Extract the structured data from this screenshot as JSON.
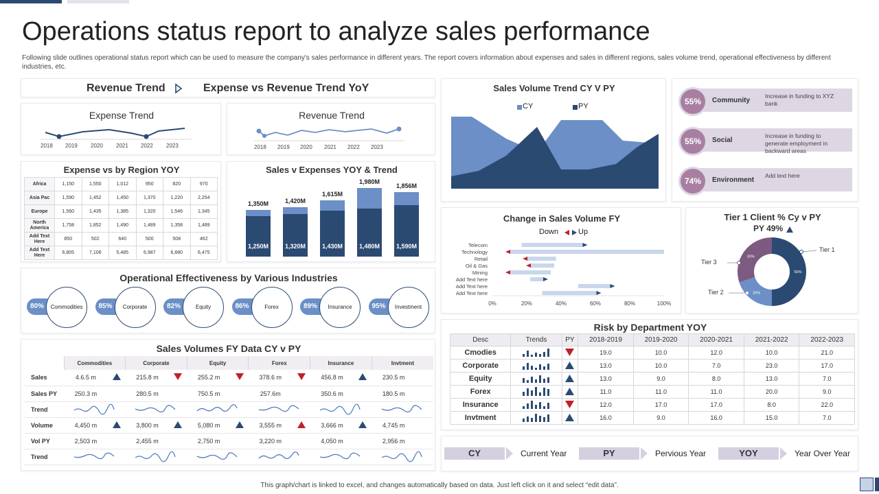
{
  "header": {
    "title": "Operations status report to analyze sales performance",
    "subtitle": "Following slide outlines operational status report which can be used to measure the company's sales performance in different years. The report covers information about expenses and sales in different regions, sales volume trend, operational effectiveness by different industries, etc."
  },
  "trend_tabs": {
    "left": "Revenue Trend",
    "right": "Expense vs Revenue Trend YoY"
  },
  "expense_trend": {
    "title": "Expense Trend",
    "years": [
      "2018",
      "2019",
      "2020",
      "2021",
      "2022",
      "2023"
    ]
  },
  "revenue_trend": {
    "title": "Revenue Trend",
    "years": [
      "2018",
      "2019",
      "2020",
      "2021",
      "2022",
      "2023"
    ]
  },
  "region": {
    "title": "Expense vs by Region YOY",
    "rows": [
      {
        "label": "Africa",
        "values": [
          "1,150",
          "1,550",
          "1,012",
          "950",
          "820",
          "970"
        ]
      },
      {
        "label": "Asia Pac",
        "values": [
          "1,590",
          "1,452",
          "1,450",
          "1,370",
          "1,220",
          "2,254"
        ]
      },
      {
        "label": "Europe",
        "values": [
          "1,560",
          "1,435",
          "1,385",
          "1,320",
          "1,546",
          "1,345"
        ]
      },
      {
        "label": "North America",
        "values": [
          "1,758",
          "1,852",
          "1,490",
          "1,489",
          "1,358",
          "1,489"
        ]
      },
      {
        "label": "Add Text Here",
        "values": [
          "850",
          "502",
          "640",
          "500",
          "508",
          "462"
        ]
      },
      {
        "label": "Add Text Here",
        "values": [
          "6,805",
          "7,106",
          "5,485",
          "6,987",
          "6,680",
          "6,475"
        ]
      }
    ]
  },
  "sales_expenses": {
    "title": "Sales v Expenses  YOY & Trend",
    "bars": [
      {
        "top": "1,350M",
        "bottom": "1,250M"
      },
      {
        "top": "1,420M",
        "bottom": "1,320M"
      },
      {
        "top": "1,615M",
        "bottom": "1,430M"
      },
      {
        "top": "1,980M",
        "bottom": "1,480M"
      },
      {
        "top": "1,856M",
        "bottom": "1,590M"
      }
    ]
  },
  "effectiveness": {
    "title": "Operational Effectiveness  by Various Industries",
    "items": [
      {
        "pct": "80%",
        "label": "Commodities"
      },
      {
        "pct": "85%",
        "label": "Corporate"
      },
      {
        "pct": "82%",
        "label": "Equity"
      },
      {
        "pct": "86%",
        "label": "Forex"
      },
      {
        "pct": "89%",
        "label": "Insurance"
      },
      {
        "pct": "95%",
        "label": "Investment"
      }
    ]
  },
  "sales_volumes": {
    "title": "Sales Volumes FY Data CY v PY",
    "headers": [
      "Commodities",
      "Corporate",
      "Equity",
      "Forex",
      "Insurance",
      "Invtment"
    ],
    "rows": [
      {
        "label": "Sales",
        "values": [
          "4.6.5 m",
          "215.8 m",
          "255.2 m",
          "378.6 m",
          "456.8 m",
          "230.5 m"
        ],
        "arrows": [
          "up",
          "down",
          "down",
          "down",
          "up",
          ""
        ]
      },
      {
        "label": "Sales PY",
        "values": [
          "250.3 m",
          "280.5 m",
          "750.5 m",
          "257.6m",
          "350.6 m",
          "180.5 m"
        ],
        "arrows": [
          "",
          "",
          "",
          "",
          "",
          ""
        ]
      },
      {
        "label": "Trend",
        "values": [
          "",
          "",
          "",
          "",
          "",
          ""
        ],
        "arrows": [
          "",
          "",
          "",
          "",
          "",
          ""
        ]
      },
      {
        "label": "Volume",
        "values": [
          "4,450 m",
          "3,800 m",
          "5,080 m",
          "3,555 m",
          "3,666 m",
          "4,745 m"
        ],
        "arrows": [
          "up",
          "up",
          "up",
          "red-up",
          "up",
          ""
        ]
      },
      {
        "label": "Vol PY",
        "values": [
          "2,503 m",
          "2,455 m",
          "2,750 m",
          "3,220 m",
          "4,050 m",
          "2,956 m"
        ],
        "arrows": [
          "",
          "",
          "",
          "",
          "",
          ""
        ]
      },
      {
        "label": "Trend",
        "values": [
          "",
          "",
          "",
          "",
          "",
          ""
        ],
        "arrows": [
          "",
          "",
          "",
          "",
          "",
          ""
        ]
      }
    ]
  },
  "volume_trend": {
    "title": "Sales Volume Trend CY  V PY",
    "legend": [
      "CY",
      "PY"
    ]
  },
  "change_volume": {
    "title": "Change in  Sales Volume FY",
    "legend": [
      "Down",
      "Up"
    ],
    "categories": [
      "Telecom",
      "Technology",
      "Retail",
      "Oil & Gas",
      "Mining",
      "Add Text here",
      "Add Text here",
      "Add Text here"
    ],
    "x_ticks": [
      "0%",
      "20%",
      "40%",
      "60%",
      "80%",
      "100%"
    ]
  },
  "csr": [
    {
      "pct": "55%",
      "label": "Community",
      "desc": "Increase in funding to XYZ bank"
    },
    {
      "pct": "55%",
      "label": "Social",
      "desc": "Increase in funding to generate employment in backward areas"
    },
    {
      "pct": "74%",
      "label": "Environment",
      "desc": "Add text here"
    }
  ],
  "tier": {
    "title": "Tier 1 Client % Cy v PY",
    "subtitle": "PY 49%",
    "labels": [
      "Tier 1",
      "Tier 3",
      "Tier 2"
    ],
    "slices": [
      {
        "name": "Tier 1",
        "pct": "50%",
        "value": 50,
        "color": "#2b4a72"
      },
      {
        "name": "Tier 2",
        "pct": "20%",
        "value": 20,
        "color": "#6b8fc6"
      },
      {
        "name": "Tier 3",
        "pct": "30%",
        "value": 30,
        "color": "#7d5a80"
      }
    ]
  },
  "risk": {
    "title": "Risk by Department YOY",
    "headers": [
      "Desc",
      "Trends",
      "PY",
      "2018-2019",
      "2019-2020",
      "2020-2021",
      "2021-2022",
      "2022-2023"
    ],
    "rows": [
      {
        "label": "Cmodies",
        "py": "down",
        "values": [
          "19.0",
          "10.0",
          "12.0",
          "10.0",
          "21.0"
        ]
      },
      {
        "label": "Corporate",
        "py": "up",
        "values": [
          "13.0",
          "10.0",
          "7.0",
          "23.0",
          "17.0"
        ]
      },
      {
        "label": "Equity",
        "py": "up",
        "values": [
          "13.0",
          "9.0",
          "8.0",
          "13.0",
          "7.0"
        ]
      },
      {
        "label": "Forex",
        "py": "up",
        "values": [
          "11.0",
          "11.0",
          "11.0",
          "20.0",
          "9.0"
        ]
      },
      {
        "label": "Insurance",
        "py": "down",
        "values": [
          "12.0",
          "17.0",
          "17.0",
          "8.0",
          "22.0"
        ]
      },
      {
        "label": "Invtment",
        "py": "up",
        "values": [
          "16.0",
          "9.0",
          "16.0",
          "15.0",
          "7.0"
        ]
      }
    ]
  },
  "key": [
    {
      "tag": "CY",
      "text": "Current Year"
    },
    {
      "tag": "PY",
      "text": "Pervious Year"
    },
    {
      "tag": "YOY",
      "text": "Year Over Year"
    }
  ],
  "footer": {
    "note": "This graph/chart is linked to excel, and changes automatically based on data. Just left click on it and select “edit data”."
  },
  "colors": {
    "navy": "#2b4a72",
    "light_blue": "#6b8fc6",
    "mauve": "#7d5a80",
    "lavender": "#ddd6e3",
    "red": "#c21f2a"
  }
}
